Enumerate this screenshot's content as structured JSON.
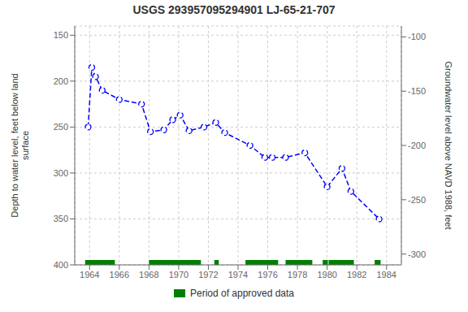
{
  "chart_data": {
    "type": "line",
    "title": "USGS 293957095294901 LJ-65-21-707",
    "ylabel": "Depth to water level, feet below land\nsurface",
    "y2label": "Groundwater level above NAVD 1988, feet",
    "x": [
      1963.9,
      1964.15,
      1964.4,
      1964.85,
      1966.0,
      1967.5,
      1968.1,
      1969.0,
      1969.6,
      1970.1,
      1970.7,
      1971.7,
      1972.5,
      1973.1,
      1974.8,
      1975.8,
      1976.3,
      1977.2,
      1978.5,
      1980.0,
      1981.0,
      1981.6,
      1983.5
    ],
    "values": [
      250,
      185,
      195,
      210,
      220,
      225,
      255,
      253,
      242,
      237,
      254,
      250,
      245,
      256,
      270,
      283,
      283,
      283,
      278,
      315,
      295,
      320,
      350
    ],
    "color": "blue",
    "line_style": "dashed",
    "marker": "o",
    "xlim": [
      1963,
      1985
    ],
    "xticks": [
      1964,
      1966,
      1968,
      1970,
      1972,
      1974,
      1976,
      1978,
      1980,
      1982,
      1984
    ],
    "ylim": [
      400,
      140
    ],
    "yticks": [
      150,
      200,
      250,
      300,
      350,
      400
    ],
    "y2lim": [
      -310,
      -90
    ],
    "y2ticks": [
      -100,
      -150,
      -200,
      -250,
      -300
    ],
    "grid": true,
    "legend": "bottom",
    "periods": {
      "name": "Period of approved data",
      "color": "#008000",
      "ranges": [
        [
          1963.7,
          1965.7
        ],
        [
          1968.0,
          1971.5
        ],
        [
          1972.4,
          1972.7
        ],
        [
          1974.5,
          1976.7
        ],
        [
          1977.2,
          1979.0
        ],
        [
          1979.7,
          1980.05
        ],
        [
          1980.1,
          1981.8
        ],
        [
          1983.2,
          1983.6
        ]
      ]
    }
  }
}
